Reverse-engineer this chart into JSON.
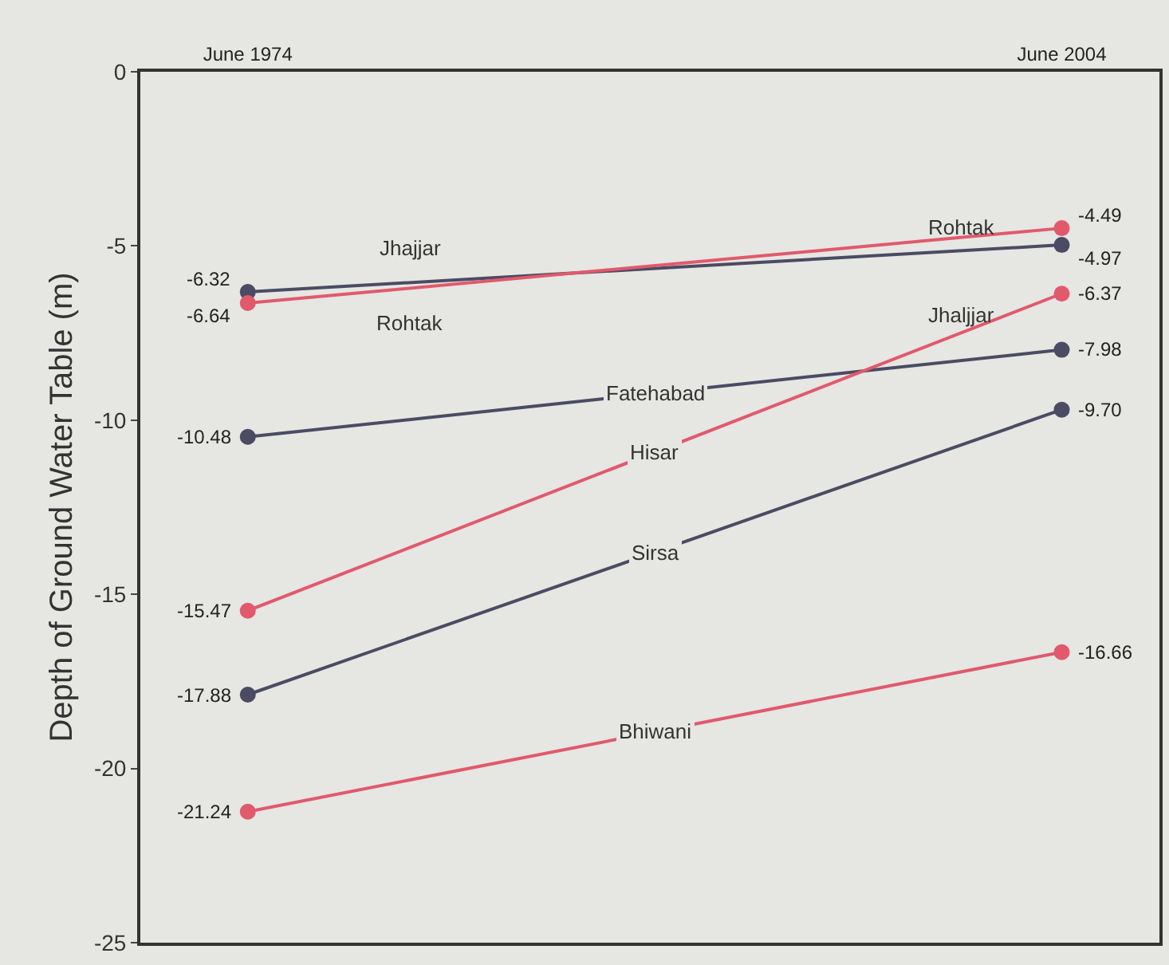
{
  "chart_data": {
    "type": "line",
    "ylabel": "Depth of Ground Water Table (m)",
    "categories": [
      "June 1974",
      "June 2004"
    ],
    "series": [
      {
        "name": "Jhajjar",
        "color": "#4b4b63",
        "values": [
          -6.32,
          -4.97
        ],
        "value_labels": [
          "-6.32",
          "-4.97"
        ]
      },
      {
        "name": "Rohtak",
        "color": "#e05a6c",
        "values": [
          -6.64,
          -4.49
        ],
        "value_labels": [
          "-6.64",
          "-4.49"
        ]
      },
      {
        "name": "Fatehabad",
        "color": "#4b4b63",
        "values": [
          -10.48,
          -7.98
        ],
        "value_labels": [
          "-10.48",
          "-7.98"
        ]
      },
      {
        "name": "Hisar",
        "color": "#e05a6c",
        "values": [
          -15.47,
          -6.37
        ],
        "value_labels": [
          "-15.47",
          "-6.37"
        ]
      },
      {
        "name": "Sirsa",
        "color": "#4b4b63",
        "values": [
          -17.88,
          -9.7
        ],
        "value_labels": [
          "-17.88",
          "-9.70"
        ]
      },
      {
        "name": "Bhiwani",
        "color": "#e05a6c",
        "values": [
          -21.24,
          -16.66
        ],
        "value_labels": [
          "-21.24",
          "-16.66"
        ]
      }
    ],
    "annotations": [
      "Rohtak",
      "Jhaljjar"
    ],
    "ylim": [
      -25,
      0
    ],
    "yticks": [
      -25,
      -20,
      -15,
      -10,
      -5,
      0
    ],
    "legend": false,
    "grid": false,
    "marker": "circle",
    "line_style": "solid"
  }
}
